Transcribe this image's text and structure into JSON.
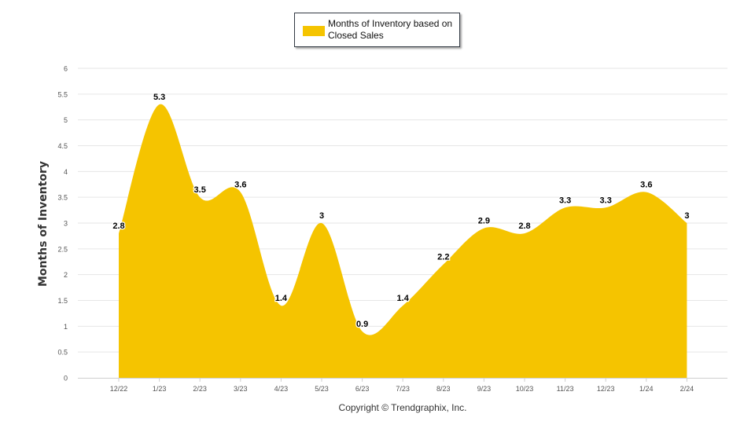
{
  "chart_data": {
    "type": "area",
    "title": "",
    "xlabel": "",
    "ylabel": "Months of Inventory",
    "ylim": [
      0,
      6
    ],
    "yticks": [
      "0",
      "0.5",
      "1",
      "1.5",
      "2",
      "2.5",
      "3",
      "3.5",
      "4",
      "4.5",
      "5",
      "5.5",
      "6"
    ],
    "categories": [
      "12/22",
      "1/23",
      "2/23",
      "3/23",
      "4/23",
      "5/23",
      "6/23",
      "7/23",
      "8/23",
      "9/23",
      "10/23",
      "11/23",
      "12/23",
      "1/24",
      "2/24"
    ],
    "series": [
      {
        "name": "Months of Inventory based on Closed Sales",
        "values": [
          2.8,
          5.3,
          3.5,
          3.6,
          1.4,
          3,
          0.9,
          1.4,
          2.2,
          2.9,
          2.8,
          3.3,
          3.3,
          3.6,
          3
        ],
        "labels": [
          "2.8",
          "5.3",
          "3.5",
          "3.6",
          "1.4",
          "3",
          "0.9",
          "1.4",
          "2.2",
          "2.9",
          "2.8",
          "3.3",
          "3.3",
          "3.6",
          "3"
        ],
        "color": "#f5c400"
      }
    ],
    "legend": {
      "position": "top-center",
      "label": "Months of Inventory based on Closed Sales"
    },
    "grid": true
  },
  "footer": {
    "copyright": "Copyright © Trendgraphix, Inc."
  }
}
